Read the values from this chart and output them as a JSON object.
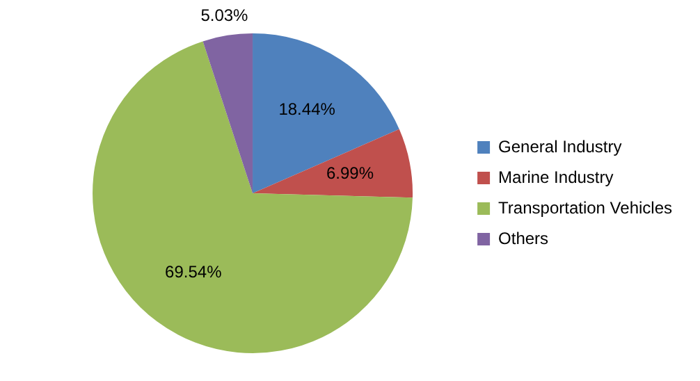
{
  "chart_data": {
    "type": "pie",
    "categories": [
      "General Industry",
      "Marine Industry",
      "Transportation Vehicles",
      "Others"
    ],
    "values": [
      18.44,
      6.99,
      69.54,
      5.03
    ],
    "value_labels": [
      "18.44%",
      "6.99%",
      "69.54%",
      "5.03%"
    ],
    "colors": [
      "#4f81bd",
      "#c0504d",
      "#9bbb59",
      "#8064a2"
    ],
    "legend": "right"
  }
}
